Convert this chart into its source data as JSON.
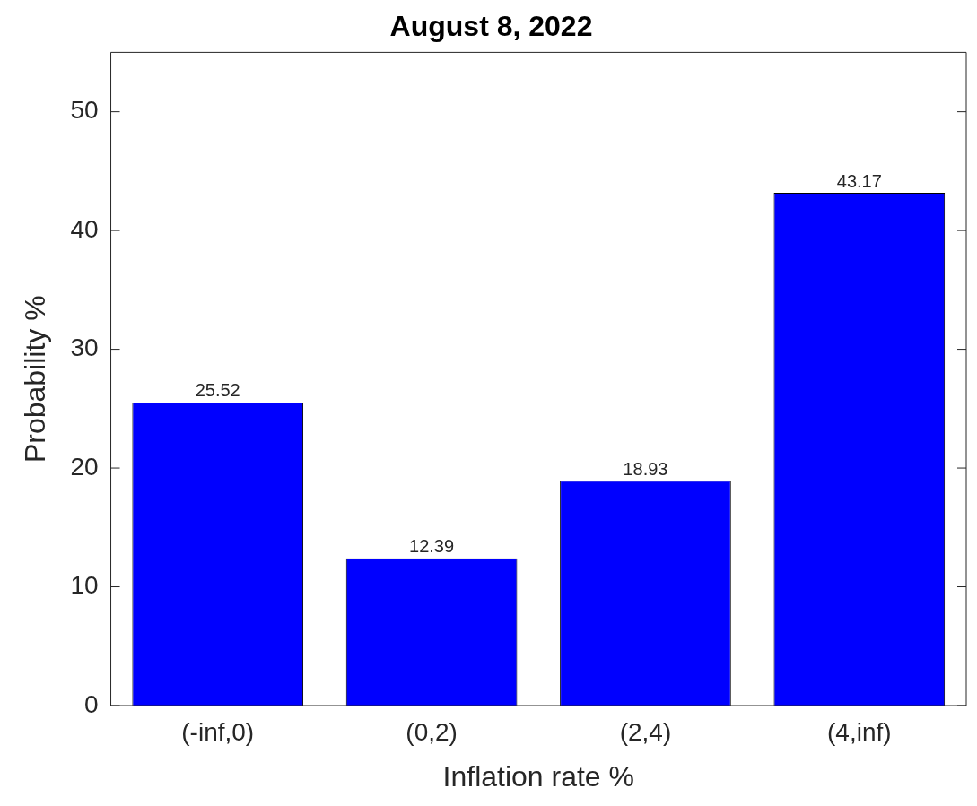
{
  "chart_data": {
    "type": "bar",
    "title": "August 8, 2022",
    "xlabel": "Inflation rate %",
    "ylabel": "Probability %",
    "categories": [
      "(-inf,0)",
      "(0,2)",
      "(2,4)",
      "(4,inf)"
    ],
    "values": [
      25.52,
      12.39,
      18.93,
      43.17
    ],
    "color": "#0000ff",
    "ylim": [
      0,
      55
    ],
    "yticks": [
      0,
      10,
      20,
      30,
      40,
      50
    ],
    "grid": false,
    "legend": false,
    "data_labels": true
  }
}
